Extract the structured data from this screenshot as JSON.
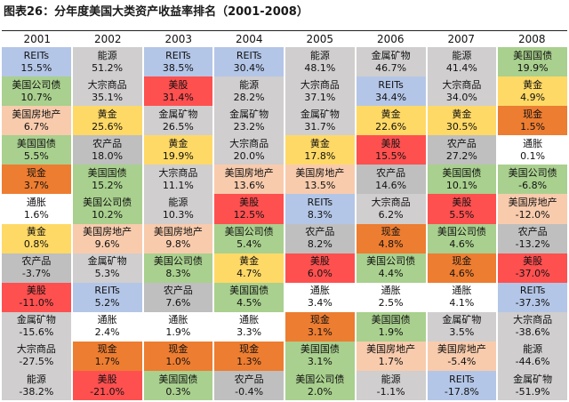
{
  "title": "图表26：分年度美国大类资产收益率排名（2001-2008）",
  "colors": {
    "REITs": "#b4c6e7",
    "美国公司债": "#a9d08e",
    "美国房地产": "#f8cbad",
    "美国国债": "#a9d08e",
    "现金": "#ed7d31",
    "通胀": "#ffffff",
    "黄金": "#ffd966",
    "农产品": "#bfbfbf",
    "美股": "#ff5050",
    "金属矿物": "#d0cece",
    "大宗商品": "#d0cece",
    "能源": "#d0cece"
  },
  "chart_data": {
    "type": "table",
    "years": [
      "2001",
      "2002",
      "2003",
      "2004",
      "2005",
      "2006",
      "2007",
      "2008"
    ],
    "columns": [
      [
        {
          "name": "REITs",
          "value": "15.5%"
        },
        {
          "name": "美国公司债",
          "value": "10.7%"
        },
        {
          "name": "美国房地产",
          "value": "6.7%"
        },
        {
          "name": "美国国债",
          "value": "5.5%"
        },
        {
          "name": "现金",
          "value": "3.7%"
        },
        {
          "name": "通胀",
          "value": "1.6%"
        },
        {
          "name": "黄金",
          "value": "0.8%"
        },
        {
          "name": "农产品",
          "value": "-3.7%"
        },
        {
          "name": "美股",
          "value": "-11.0%"
        },
        {
          "name": "金属矿物",
          "value": "-15.6%"
        },
        {
          "name": "大宗商品",
          "value": "-27.5%"
        },
        {
          "name": "能源",
          "value": "-38.2%"
        }
      ],
      [
        {
          "name": "能源",
          "value": "51.2%"
        },
        {
          "name": "大宗商品",
          "value": "35.1%"
        },
        {
          "name": "黄金",
          "value": "25.6%"
        },
        {
          "name": "农产品",
          "value": "18.0%"
        },
        {
          "name": "美国国债",
          "value": "15.2%"
        },
        {
          "name": "美国公司债",
          "value": "10.2%"
        },
        {
          "name": "美国房地产",
          "value": "9.6%"
        },
        {
          "name": "金属矿物",
          "value": "5.3%"
        },
        {
          "name": "REITs",
          "value": "5.2%"
        },
        {
          "name": "通胀",
          "value": "2.4%"
        },
        {
          "name": "现金",
          "value": "1.7%"
        },
        {
          "name": "美股",
          "value": "-21.0%"
        }
      ],
      [
        {
          "name": "REITs",
          "value": "38.5%"
        },
        {
          "name": "美股",
          "value": "31.4%"
        },
        {
          "name": "金属矿物",
          "value": "26.5%"
        },
        {
          "name": "黄金",
          "value": "19.9%"
        },
        {
          "name": "大宗商品",
          "value": "11.1%"
        },
        {
          "name": "能源",
          "value": "10.3%"
        },
        {
          "name": "美国房地产",
          "value": "9.8%"
        },
        {
          "name": "美国公司债",
          "value": "8.3%"
        },
        {
          "name": "农产品",
          "value": "7.6%"
        },
        {
          "name": "通胀",
          "value": "1.9%"
        },
        {
          "name": "现金",
          "value": "1.0%"
        },
        {
          "name": "美国国债",
          "value": "0.3%"
        }
      ],
      [
        {
          "name": "REITs",
          "value": "30.4%"
        },
        {
          "name": "能源",
          "value": "28.2%"
        },
        {
          "name": "金属矿物",
          "value": "23.2%"
        },
        {
          "name": "大宗商品",
          "value": "20.0%"
        },
        {
          "name": "美国房地产",
          "value": "13.6%"
        },
        {
          "name": "美股",
          "value": "12.5%"
        },
        {
          "name": "美国公司债",
          "value": "5.4%"
        },
        {
          "name": "黄金",
          "value": "4.7%"
        },
        {
          "name": "美国国债",
          "value": "4.5%"
        },
        {
          "name": "通胀",
          "value": "3.3%"
        },
        {
          "name": "现金",
          "value": "1.3%"
        },
        {
          "name": "农产品",
          "value": "-0.4%"
        }
      ],
      [
        {
          "name": "能源",
          "value": "48.1%"
        },
        {
          "name": "大宗商品",
          "value": "37.1%"
        },
        {
          "name": "金属矿物",
          "value": "31.7%"
        },
        {
          "name": "黄金",
          "value": "17.8%"
        },
        {
          "name": "美国房地产",
          "value": "13.5%"
        },
        {
          "name": "REITs",
          "value": "8.3%"
        },
        {
          "name": "农产品",
          "value": "8.2%"
        },
        {
          "name": "美股",
          "value": "6.0%"
        },
        {
          "name": "通胀",
          "value": "3.4%"
        },
        {
          "name": "现金",
          "value": "3.1%"
        },
        {
          "name": "美国国债",
          "value": "3.1%"
        },
        {
          "name": "美国公司债",
          "value": "2.0%"
        }
      ],
      [
        {
          "name": "金属矿物",
          "value": "46.7%"
        },
        {
          "name": "REITs",
          "value": "34.4%"
        },
        {
          "name": "黄金",
          "value": "22.6%"
        },
        {
          "name": "美股",
          "value": "15.5%"
        },
        {
          "name": "农产品",
          "value": "14.6%"
        },
        {
          "name": "大宗商品",
          "value": "6.2%"
        },
        {
          "name": "现金",
          "value": "4.8%"
        },
        {
          "name": "美国公司债",
          "value": "4.4%"
        },
        {
          "name": "通胀",
          "value": "2.5%"
        },
        {
          "name": "美国国债",
          "value": "1.9%"
        },
        {
          "name": "美国房地产",
          "value": "1.7%"
        },
        {
          "name": "能源",
          "value": "-1.1%"
        }
      ],
      [
        {
          "name": "能源",
          "value": "41.4%"
        },
        {
          "name": "大宗商品",
          "value": "34.0%"
        },
        {
          "name": "黄金",
          "value": "30.5%"
        },
        {
          "name": "农产品",
          "value": "27.2%"
        },
        {
          "name": "美国国债",
          "value": "10.1%"
        },
        {
          "name": "美股",
          "value": "5.5%"
        },
        {
          "name": "美国公司债",
          "value": "4.6%"
        },
        {
          "name": "现金",
          "value": "4.6%"
        },
        {
          "name": "通胀",
          "value": "4.1%"
        },
        {
          "name": "金属矿物",
          "value": "3.5%"
        },
        {
          "name": "美国房地产",
          "value": "-5.4%"
        },
        {
          "name": "REITs",
          "value": "-17.8%"
        }
      ],
      [
        {
          "name": "美国国债",
          "value": "19.9%"
        },
        {
          "name": "黄金",
          "value": "4.9%"
        },
        {
          "name": "现金",
          "value": "1.5%"
        },
        {
          "name": "通胀",
          "value": "0.1%"
        },
        {
          "name": "美国公司债",
          "value": "-6.8%"
        },
        {
          "name": "美国房地产",
          "value": "-12.0%"
        },
        {
          "name": "农产品",
          "value": "-13.2%"
        },
        {
          "name": "美股",
          "value": "-37.0%"
        },
        {
          "name": "REITs",
          "value": "-37.3%"
        },
        {
          "name": "大宗商品",
          "value": "-38.6%"
        },
        {
          "name": "能源",
          "value": "-44.6%"
        },
        {
          "name": "金属矿物",
          "value": "-51.9%"
        }
      ]
    ]
  }
}
